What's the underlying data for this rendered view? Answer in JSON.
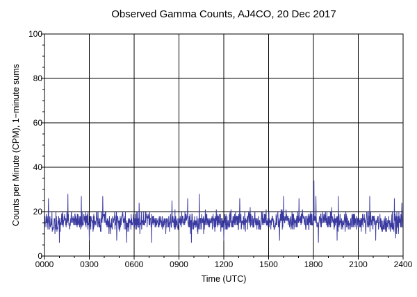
{
  "chart_data": {
    "type": "line",
    "title": "Observed Gamma Counts, AJ4CO, 20 Dec 2017",
    "xlabel": "Time (UTC)",
    "ylabel": "Counts per Minute (CPM), 1−minute sums",
    "xlim": [
      0,
      1440
    ],
    "ylim": [
      0,
      100
    ],
    "x_ticks": [
      {
        "value": 0,
        "label": "0000"
      },
      {
        "value": 180,
        "label": "0300"
      },
      {
        "value": 360,
        "label": "0600"
      },
      {
        "value": 540,
        "label": "0900"
      },
      {
        "value": 720,
        "label": "1200"
      },
      {
        "value": 900,
        "label": "1500"
      },
      {
        "value": 1080,
        "label": "1800"
      },
      {
        "value": 1260,
        "label": "2100"
      },
      {
        "value": 1440,
        "label": "2400"
      }
    ],
    "y_ticks": [
      {
        "value": 0,
        "label": "0"
      },
      {
        "value": 20,
        "label": "20"
      },
      {
        "value": 40,
        "label": "40"
      },
      {
        "value": 60,
        "label": "60"
      },
      {
        "value": 80,
        "label": "80"
      },
      {
        "value": 100,
        "label": "100"
      }
    ],
    "grid": true,
    "series_color": "#3a3aa0",
    "sample_interval_minutes": 1,
    "mean_cpm": 15.8,
    "series_points": [
      [
        0,
        16
      ],
      [
        20,
        15
      ],
      [
        40,
        14
      ],
      [
        60,
        16
      ],
      [
        80,
        17
      ],
      [
        100,
        15
      ],
      [
        120,
        16
      ],
      [
        140,
        15
      ],
      [
        160,
        17
      ],
      [
        180,
        15
      ],
      [
        200,
        16
      ],
      [
        220,
        15
      ],
      [
        240,
        16
      ],
      [
        260,
        14
      ],
      [
        280,
        16
      ],
      [
        300,
        15
      ],
      [
        320,
        16
      ],
      [
        340,
        15
      ],
      [
        360,
        16
      ],
      [
        380,
        15
      ],
      [
        400,
        16
      ],
      [
        420,
        17
      ],
      [
        440,
        15
      ],
      [
        460,
        16
      ],
      [
        480,
        15
      ],
      [
        500,
        16
      ],
      [
        520,
        15
      ],
      [
        540,
        15
      ],
      [
        560,
        16
      ],
      [
        580,
        15
      ],
      [
        600,
        16
      ],
      [
        620,
        15
      ],
      [
        640,
        16
      ],
      [
        660,
        15
      ],
      [
        680,
        16
      ],
      [
        700,
        16
      ],
      [
        720,
        15
      ],
      [
        740,
        16
      ],
      [
        760,
        16
      ],
      [
        780,
        15
      ],
      [
        800,
        16
      ],
      [
        820,
        17
      ],
      [
        840,
        16
      ],
      [
        860,
        15
      ],
      [
        880,
        16
      ],
      [
        900,
        16
      ],
      [
        920,
        15
      ],
      [
        940,
        16
      ],
      [
        960,
        17
      ],
      [
        980,
        16
      ],
      [
        1000,
        15
      ],
      [
        1020,
        16
      ],
      [
        1040,
        16
      ],
      [
        1060,
        15
      ],
      [
        1080,
        16
      ],
      [
        1100,
        15
      ],
      [
        1120,
        16
      ],
      [
        1140,
        17
      ],
      [
        1160,
        16
      ],
      [
        1180,
        15
      ],
      [
        1200,
        16
      ],
      [
        1220,
        15
      ],
      [
        1240,
        16
      ],
      [
        1260,
        15
      ],
      [
        1280,
        16
      ],
      [
        1300,
        15
      ],
      [
        1320,
        16
      ],
      [
        1340,
        15
      ],
      [
        1360,
        14
      ],
      [
        1380,
        15
      ],
      [
        1400,
        16
      ],
      [
        1420,
        15
      ],
      [
        1440,
        15
      ]
    ],
    "notable_points": [
      [
        16,
        26
      ],
      [
        94,
        28
      ],
      [
        148,
        27
      ],
      [
        234,
        27
      ],
      [
        380,
        24
      ],
      [
        430,
        26
      ],
      [
        512,
        25
      ],
      [
        575,
        26
      ],
      [
        622,
        28
      ],
      [
        720,
        30
      ],
      [
        784,
        26
      ],
      [
        960,
        27
      ],
      [
        1022,
        26
      ],
      [
        1090,
        27
      ],
      [
        1082,
        34
      ],
      [
        1180,
        27
      ],
      [
        1306,
        27
      ],
      [
        1405,
        26
      ],
      [
        1435,
        24
      ],
      [
        60,
        6
      ],
      [
        180,
        7
      ],
      [
        290,
        7
      ],
      [
        330,
        6
      ],
      [
        430,
        6
      ],
      [
        590,
        6
      ],
      [
        720,
        7
      ],
      [
        944,
        7
      ],
      [
        1100,
        6
      ],
      [
        1175,
        7
      ],
      [
        1330,
        7
      ],
      [
        1410,
        8
      ]
    ]
  }
}
